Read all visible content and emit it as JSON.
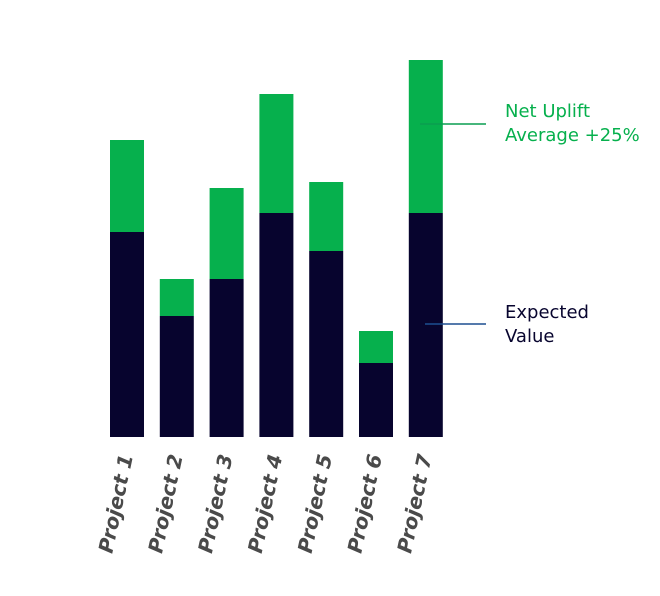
{
  "chart_data": {
    "type": "bar",
    "stacked": true,
    "categories": [
      "Project 1",
      "Project 2",
      "Project 3",
      "Project 4",
      "Project 5",
      "Project 6",
      "Project 7"
    ],
    "series": [
      {
        "name": "Expected Value",
        "color": "#07042e",
        "values": [
          205,
          121,
          158,
          224,
          186,
          74,
          224
        ]
      },
      {
        "name": "Net Uplift",
        "color": "#06b04d",
        "values": [
          92,
          37,
          91,
          119,
          69,
          32,
          153
        ]
      }
    ],
    "ylim": [
      0,
      377
    ],
    "grid": false,
    "legend": {
      "placement": "right",
      "entries": [
        {
          "lines": [
            "Net Uplift",
            "Average +25%"
          ],
          "color": "#06b04d",
          "line_color": "#0a9e50",
          "series_index": 1
        },
        {
          "lines": [
            "Expected",
            "Value"
          ],
          "color": "#07042e",
          "line_color": "#1d4f91",
          "series_index": 0
        }
      ]
    }
  }
}
